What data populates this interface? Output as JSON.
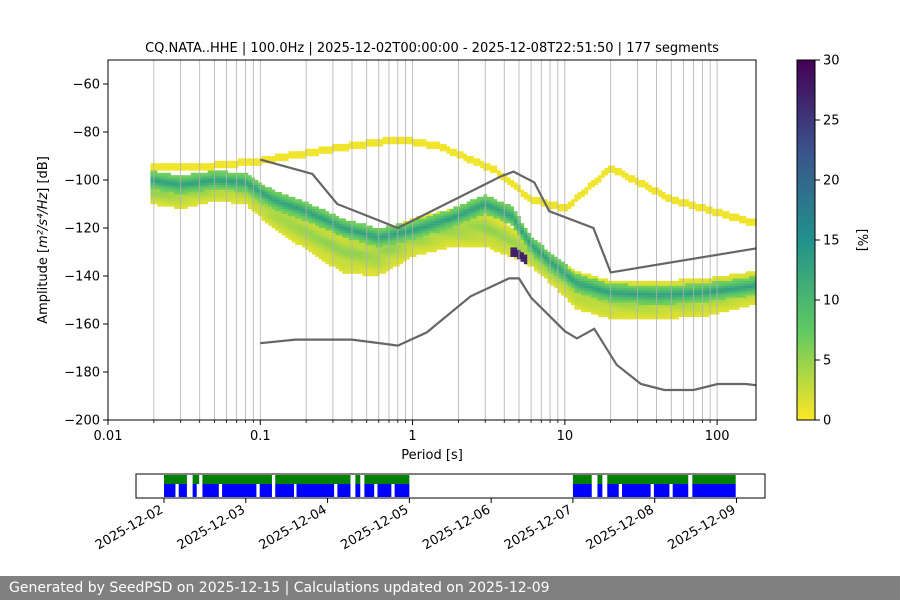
{
  "footer": {
    "text": "Generated by SeedPSD on 2025-12-15 | Calculations updated on 2025-12-09"
  },
  "chart_data": [
    {
      "type": "heatmap",
      "title": "CQ.NATA..HHE | 100.0Hz | 2025-12-02T00:00:00 - 2025-12-08T22:51:50 | 177 segments",
      "xlabel": "Period [s]",
      "ylabel_prefix": "Amplitude [",
      "ylabel_unit": "m²/s⁴/Hz",
      "ylabel_suffix": "] [dB]",
      "xscale": "log",
      "xlim": [
        0.01,
        180
      ],
      "ylim": [
        -200,
        -50
      ],
      "x_ticks": [
        0.01,
        0.1,
        1,
        10,
        100
      ],
      "x_tick_labels": [
        "0.01",
        "0.1",
        "1",
        "10",
        "100"
      ],
      "y_ticks": [
        -200,
        -180,
        -160,
        -140,
        -120,
        -100,
        -80,
        -60
      ],
      "y_tick_labels": [
        "−200",
        "−180",
        "−160",
        "−140",
        "−120",
        "−100",
        "−80",
        "−60"
      ],
      "grid": "vertical log grid",
      "colormap": "viridis_r",
      "colorbar": {
        "label": "[%]",
        "min": 0,
        "max": 30,
        "ticks": [
          0,
          5,
          10,
          15,
          20,
          25,
          30
        ]
      },
      "noise_models": [
        {
          "name": "",
          "x": [
            0.1,
            0.17,
            0.4,
            0.8,
            1.24,
            2.4,
            4.3,
            5.0,
            6.0,
            10.0,
            12.0,
            15.6,
            21.9,
            31.6,
            45.0,
            70.0,
            101.0,
            154.0,
            180.0
          ],
          "y": [
            -168,
            -166.5,
            -166.5,
            -169,
            -163.5,
            -148.5,
            -141,
            -141,
            -149,
            -163,
            -166,
            -162,
            -177,
            -185,
            -187.5,
            -187.5,
            -185,
            -185,
            -185.5
          ]
        },
        {
          "name": "",
          "x": [
            0.1,
            0.22,
            0.32,
            0.8,
            3.8,
            4.6,
            6.3,
            7.9,
            15.4,
            20.0,
            180.0
          ],
          "y": [
            -91.5,
            -97.5,
            -110,
            -120,
            -98.5,
            -96.5,
            -101,
            -113,
            -120,
            -138.5,
            -128.5
          ]
        }
      ],
      "psd_bands": [
        {
          "name": "",
          "x": [
            0.019,
            0.03,
            0.05,
            0.08,
            0.12,
            0.2,
            0.35,
            0.6,
            1.0,
            1.8,
            3.0,
            4.5,
            6.0,
            8.0,
            12.0,
            20.0,
            40.0,
            80.0,
            180.0
          ],
          "center": [
            -105,
            -106,
            -103,
            -104,
            -113,
            -121,
            -130,
            -131,
            -124,
            -120,
            -120,
            -126,
            -131,
            -137,
            -146,
            -150,
            -150,
            -149,
            -145
          ],
          "halfwidth": [
            5,
            6,
            6,
            6,
            7,
            8,
            9,
            9,
            8,
            8,
            8,
            6,
            5,
            6,
            8,
            8,
            8,
            8,
            7
          ]
        },
        {
          "name": "",
          "x": [
            0.019,
            0.03,
            0.05,
            0.08,
            0.12,
            0.2,
            0.35,
            0.6,
            1.0,
            1.8,
            3.0,
            4.5,
            6.0,
            8.0,
            12.0,
            20.0,
            40.0,
            80.0,
            180.0
          ],
          "center": [
            -100,
            -102,
            -100,
            -101,
            -108,
            -113,
            -120,
            -124,
            -121,
            -116,
            -110,
            -115,
            -127,
            -134,
            -143,
            -147,
            -148,
            -147,
            -144
          ],
          "halfwidth": [
            3,
            3,
            3,
            3,
            3,
            3,
            3,
            3,
            3,
            3,
            3,
            3,
            3,
            3,
            3,
            3,
            3,
            3,
            3
          ]
        },
        {
          "name": "",
          "x": [
            0.019,
            0.05,
            0.1,
            0.3,
            0.8,
            1.5,
            3.5,
            6.0,
            10.0,
            20.0,
            50.0,
            180.0
          ],
          "center": [
            -95,
            -94,
            -92,
            -87,
            -83,
            -86,
            -96,
            -108,
            -112,
            -95,
            -108,
            -118
          ],
          "halfwidth": [
            1.5,
            1.5,
            1.5,
            1.5,
            1.5,
            1.5,
            1.5,
            1.5,
            1.5,
            1.5,
            1.5,
            1.5
          ]
        }
      ]
    },
    {
      "type": "timeline",
      "x_ticks": [
        "2025-12-02",
        "2025-12-03",
        "2025-12-04",
        "2025-12-05",
        "2025-12-06",
        "2025-12-07",
        "2025-12-08",
        "2025-12-09"
      ],
      "colors": {
        "availability": "#008000",
        "segments": "#0000ff"
      },
      "availability": [
        [
          0.0,
          0.28
        ],
        [
          0.35,
          0.43
        ],
        [
          0.47,
          1.32
        ],
        [
          1.36,
          2.28
        ],
        [
          2.34,
          2.4
        ],
        [
          2.45,
          3.0
        ],
        [
          5.0,
          5.23
        ],
        [
          5.3,
          5.36
        ],
        [
          5.42,
          6.41
        ],
        [
          6.46,
          6.99
        ]
      ],
      "segments": [
        [
          0.0,
          0.14
        ],
        [
          0.18,
          0.28
        ],
        [
          0.35,
          0.4
        ],
        [
          0.47,
          0.67
        ],
        [
          0.71,
          1.13
        ],
        [
          1.17,
          1.32
        ],
        [
          1.36,
          1.59
        ],
        [
          1.62,
          2.08
        ],
        [
          2.12,
          2.28
        ],
        [
          2.34,
          2.4
        ],
        [
          2.45,
          2.57
        ],
        [
          2.61,
          2.78
        ],
        [
          2.82,
          3.0
        ],
        [
          5.0,
          5.23
        ],
        [
          5.3,
          5.36
        ],
        [
          5.42,
          5.56
        ],
        [
          5.6,
          5.95
        ],
        [
          5.99,
          6.18
        ],
        [
          6.22,
          6.41
        ],
        [
          6.46,
          6.99
        ]
      ]
    }
  ]
}
